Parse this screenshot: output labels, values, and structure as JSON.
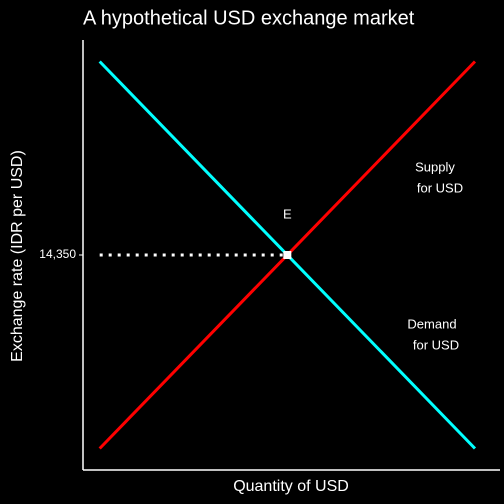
{
  "chart_data": {
    "type": "line",
    "title": "A hypothetical USD exchange market",
    "xlabel": "Quantity of USD",
    "ylabel": "Exchange rate (IDR per USD)",
    "xlim": [
      0,
      100
    ],
    "ylim": [
      14100,
      14600
    ],
    "yticks": [
      {
        "value": 14350,
        "label": "14,350"
      }
    ],
    "series": [
      {
        "label": [
          "Supply",
          "for USD"
        ],
        "color": "#ff0000",
        "x": [
          4,
          94
        ],
        "values": [
          14125,
          14575
        ]
      },
      {
        "label": [
          "Demand",
          "for USD"
        ],
        "color": "#00ffff",
        "x": [
          4,
          94
        ],
        "values": [
          14575,
          14125
        ]
      }
    ],
    "equilibrium": {
      "label": "E",
      "x": 49,
      "y": 14350,
      "guide_start": 4
    }
  }
}
